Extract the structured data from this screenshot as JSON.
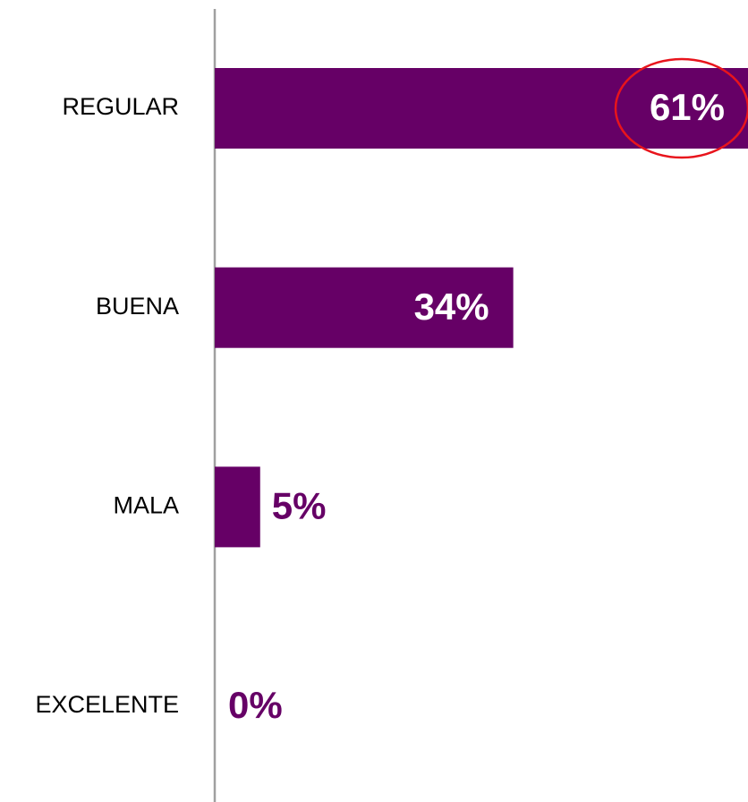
{
  "chart_data": {
    "type": "bar",
    "orientation": "horizontal",
    "categories": [
      "REGULAR",
      "BUENA",
      "MALA",
      "EXCELENTE"
    ],
    "values": [
      61,
      34,
      5,
      0
    ],
    "value_labels": [
      "61%",
      "34%",
      "5%",
      "0%"
    ],
    "color": "#660066"
  }
}
